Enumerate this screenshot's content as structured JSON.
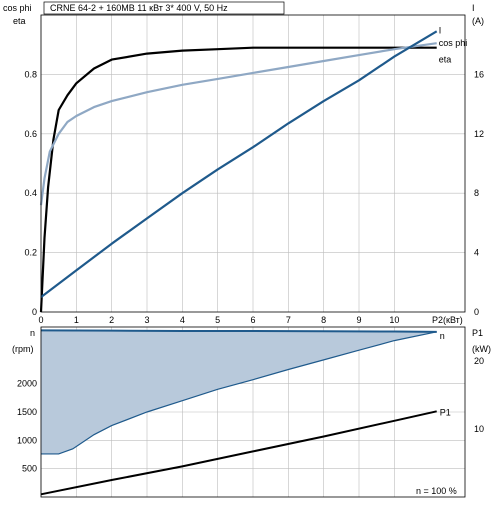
{
  "header": {
    "title": "CRNE 64-2 + 160MB    11 кВт   3* 400 V, 50 Hz"
  },
  "chart_data": [
    {
      "type": "line",
      "left_axis": {
        "label_top": "cos phi",
        "label_bottom": "eta",
        "ylim": [
          0,
          1.0
        ],
        "ticks": [
          0,
          0.2,
          0.4,
          0.6,
          0.8
        ]
      },
      "right_axis": {
        "label_top": "I",
        "label_bottom": "(A)",
        "ylim": [
          0,
          20
        ],
        "ticks": [
          0,
          4,
          8,
          12,
          16
        ]
      },
      "x_axis": {
        "label": "P2(кВт)",
        "xlim": [
          0,
          12
        ],
        "ticks": [
          0,
          1,
          2,
          3,
          4,
          5,
          6,
          7,
          8,
          9,
          10
        ]
      },
      "grid": true,
      "series": [
        {
          "name": "eta",
          "axis": "left",
          "color": "#000000",
          "x": [
            0,
            0.1,
            0.2,
            0.35,
            0.5,
            0.75,
            1.0,
            1.5,
            2.0,
            3.0,
            4.0,
            5.0,
            6.0,
            7.0,
            8.0,
            9.0,
            10.0,
            11.2
          ],
          "y": [
            0.0,
            0.25,
            0.42,
            0.58,
            0.68,
            0.73,
            0.77,
            0.82,
            0.85,
            0.87,
            0.88,
            0.885,
            0.89,
            0.89,
            0.89,
            0.89,
            0.89,
            0.89
          ]
        },
        {
          "name": "cos phi",
          "axis": "left",
          "color": "#8fa8c4",
          "x": [
            0,
            0.1,
            0.25,
            0.5,
            0.75,
            1.0,
            1.5,
            2.0,
            3.0,
            4.0,
            5.0,
            6.0,
            7.0,
            8.0,
            9.0,
            10.0,
            11.2
          ],
          "y": [
            0.36,
            0.45,
            0.54,
            0.6,
            0.64,
            0.66,
            0.69,
            0.71,
            0.74,
            0.765,
            0.785,
            0.805,
            0.825,
            0.845,
            0.865,
            0.885,
            0.905
          ]
        },
        {
          "name": "I",
          "axis": "right",
          "color": "#1f5a8c",
          "x": [
            0,
            1,
            2,
            3,
            4,
            5,
            6,
            7,
            8,
            9,
            10,
            11.2
          ],
          "y": [
            1.0,
            2.8,
            4.6,
            6.3,
            8.0,
            9.6,
            11.1,
            12.7,
            14.2,
            15.6,
            17.2,
            18.9
          ]
        }
      ]
    },
    {
      "type": "area",
      "left_axis": {
        "label_top": "n",
        "label_bottom": "(rpm)",
        "ylim": [
          0,
          3000
        ],
        "ticks": [
          500,
          1000,
          1500,
          2000
        ]
      },
      "right_axis": {
        "label_top": "P1",
        "label_bottom": "(kW)",
        "ylim": [
          0,
          25
        ],
        "ticks": [
          10,
          20
        ]
      },
      "x_axis": {
        "xlim": [
          0,
          12
        ]
      },
      "annotation": "n   = 100 %",
      "series": [
        {
          "name": "n",
          "axis": "left",
          "color": "#1f5a8c",
          "fill": "#b8c9db",
          "x_upper": [
            0,
            2,
            4,
            6,
            8,
            10,
            11.2
          ],
          "y_upper": [
            2940,
            2935,
            2930,
            2930,
            2925,
            2920,
            2915
          ],
          "x_lower": [
            0,
            0.5,
            0.9,
            1.5,
            2,
            3,
            4,
            5,
            6,
            7,
            8,
            9,
            10,
            11.2
          ],
          "y_lower": [
            760,
            760,
            850,
            1100,
            1260,
            1500,
            1700,
            1900,
            2070,
            2250,
            2420,
            2590,
            2760,
            2915
          ]
        },
        {
          "name": "P1",
          "axis": "right",
          "color": "#000000",
          "x": [
            0,
            2,
            4,
            6,
            8,
            10,
            11.2
          ],
          "y": [
            0.4,
            2.5,
            4.5,
            6.7,
            8.9,
            11.2,
            12.6
          ]
        }
      ]
    }
  ]
}
